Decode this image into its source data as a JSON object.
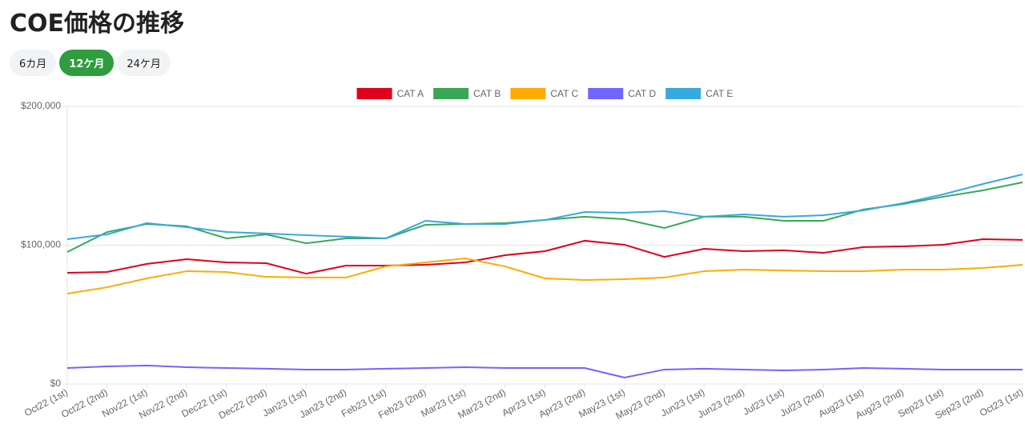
{
  "chart_data": {
    "type": "line",
    "title": "COE価格の推移",
    "ranges": [
      "6カ月",
      "12ケ月",
      "24ケ月"
    ],
    "selected_range": 1,
    "categories": [
      "Oct22 (1st)",
      "Oct22 (2nd)",
      "Nov22 (1st)",
      "Nov22 (2nd)",
      "Dec22 (1st)",
      "Dec22 (2nd)",
      "Jan23 (1st)",
      "Jan23 (2nd)",
      "Feb23 (1st)",
      "Feb23 (2nd)",
      "Mar23 (1st)",
      "Mar23 (2nd)",
      "Apr23 (1st)",
      "Apr23 (2nd)",
      "May23 (1st)",
      "May23 (2nd)",
      "Jun23 (1st)",
      "Jun23 (2nd)",
      "Jul23 (1st)",
      "Jul23 (2nd)",
      "Aug23 (1st)",
      "Aug23 (2nd)",
      "Sep23 (1st)",
      "Sep23 (2nd)",
      "Oct23 (1st)"
    ],
    "series": [
      {
        "name": "CAT A",
        "color": "#e0001b",
        "values": [
          80100,
          80700,
          86500,
          89900,
          87600,
          87000,
          79500,
          85300,
          85300,
          85900,
          87600,
          92800,
          95700,
          103200,
          100300,
          91600,
          97400,
          95700,
          96300,
          94500,
          98600,
          99100,
          100300,
          104300,
          103800
        ]
      },
      {
        "name": "CAT B",
        "color": "#3aa757",
        "values": [
          95100,
          109500,
          115300,
          113600,
          104900,
          107800,
          101400,
          104900,
          104900,
          114700,
          115300,
          115900,
          118200,
          120500,
          118700,
          112400,
          120500,
          120500,
          117600,
          117600,
          125700,
          129700,
          134900,
          139500,
          145300
        ]
      },
      {
        "name": "CAT C",
        "color": "#ffab00",
        "values": [
          65100,
          69700,
          76100,
          81300,
          80700,
          77200,
          76700,
          76700,
          84700,
          87600,
          90500,
          84700,
          76100,
          74900,
          75500,
          76700,
          81300,
          82400,
          81800,
          81300,
          81300,
          82400,
          82400,
          83600,
          85900
        ]
      },
      {
        "name": "CAT D",
        "color": "#7265ff",
        "values": [
          11500,
          12700,
          13300,
          12100,
          11500,
          11000,
          10400,
          10400,
          11000,
          11500,
          12100,
          11500,
          11500,
          11500,
          4600,
          10400,
          11000,
          10400,
          9800,
          10400,
          11500,
          11000,
          10400,
          10400,
          10400
        ]
      },
      {
        "name": "CAT E",
        "color": "#36a9e1",
        "values": [
          104300,
          107800,
          115900,
          113000,
          109500,
          108400,
          107200,
          106100,
          104900,
          117600,
          115300,
          115300,
          118200,
          123900,
          123400,
          124500,
          120500,
          122200,
          120500,
          121600,
          125100,
          130300,
          136600,
          144100,
          151000
        ]
      }
    ],
    "ylim": [
      0,
      200000
    ],
    "yticks": [
      {
        "value": 0,
        "label": "$0"
      },
      {
        "value": 100000,
        "label": "$100,000"
      },
      {
        "value": 200000,
        "label": "$200,000"
      }
    ],
    "grid": true,
    "legend": "top"
  }
}
